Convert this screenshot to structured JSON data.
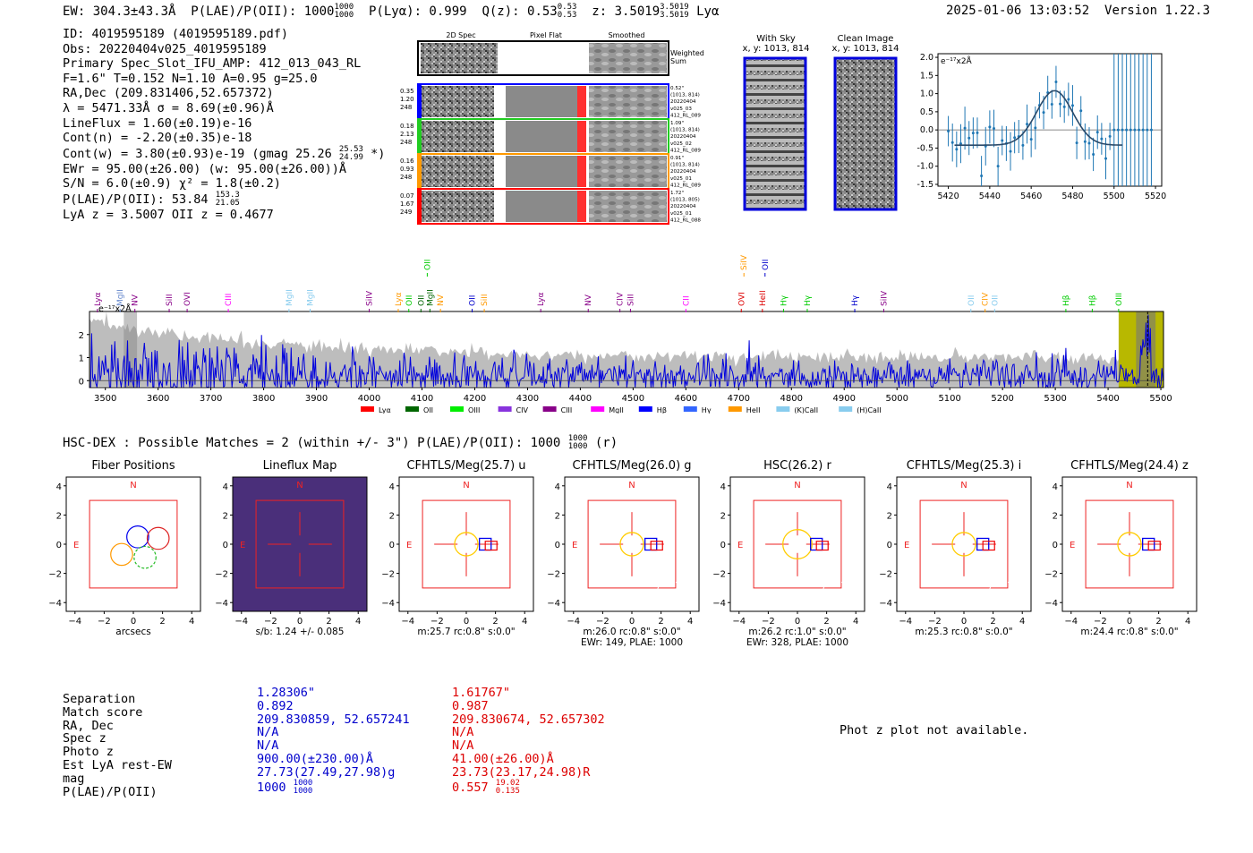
{
  "header": {
    "ew": "EW: 304.3±43.3Å",
    "plae": "P(LAE)/P(OII): 1000",
    "plae_hi": "1000",
    "plae_lo": "1000",
    "plya": "P(Lyα): 0.999",
    "qz": "Q(z): 0.53",
    "qz_hi": "0.53",
    "qz_lo": "0.53",
    "z": "z: 3.5019",
    "z_hi": "3.5019",
    "z_lo": "3.5019",
    "z_line": "Lyα",
    "timestamp": "2025-01-06 13:03:52",
    "version": "Version 1.22.3"
  },
  "info": {
    "id": "ID: 4019595189 (4019595189.pdf)",
    "obs": "Obs: 20220404v025_4019595189",
    "primary": "Primary Spec_Slot_IFU_AMP: 412_013_043_RL",
    "params": "F=1.6\"  T=0.152  N=1.10  A=0.95  g=25.0",
    "radec": "RA,Dec (209.831406,52.657372)",
    "lambda": "λ = 5471.33Å   σ = 8.69(±0.96)Å",
    "lineflux": "LineFlux = 1.60(±0.19)e-16",
    "contn": "Cont(n) = -2.20(±0.35)e-18",
    "contw": "Cont(w) = 3.80(±0.93)e-19 (gmag 25.26",
    "contw_hi": "25.53",
    "contw_lo": "24.99",
    "contw_end": "*)",
    "ewr": "EWr = 95.00(±26.00) (w: 95.00(±26.00))Å",
    "sn": "S/N = 6.0(±0.9)  χ² = 1.8(±0.2)",
    "plae": "P(LAE)/P(OII): 53.84",
    "plae_hi": "153.3",
    "plae_lo": "21.05",
    "zline": "LyA z = 3.5007   OII z = 0.4677"
  },
  "spec2d": {
    "col_titles": [
      "2D Spec",
      "Pixel Flat",
      "Smoothed"
    ],
    "weighted": "Weighted Sum",
    "rows": [
      {
        "left": [
          "0.35",
          "1.20",
          "248"
        ],
        "right": [
          "0.52\"",
          "(1013, 814)",
          "20220404",
          "v025_03",
          "412_RL_089"
        ],
        "color": "#0000ff"
      },
      {
        "left": [
          "0.18",
          "2.13",
          "248"
        ],
        "right": [
          "1.09\"",
          "(1013, 814)",
          "20220404",
          "v025_02",
          "412_RL_089"
        ],
        "color": "#22cc22"
      },
      {
        "left": [
          "0.16",
          "0.93",
          "248"
        ],
        "right": [
          "0.91\"",
          "(1013, 814)",
          "20220404",
          "v025_01",
          "412_RL_089"
        ],
        "color": "#ff9900"
      },
      {
        "left": [
          "0.07",
          "1.67",
          "249"
        ],
        "right": [
          "1.72\"",
          "(1013, 805)",
          "20220404",
          "v025_01",
          "412_RL_088"
        ],
        "color": "#ff0000"
      }
    ]
  },
  "sky": {
    "with_sky_title": "With Sky",
    "with_sky_xy": "x, y: 1013, 814",
    "clean_title": "Clean Image",
    "clean_xy": "x, y: 1013, 814"
  },
  "line_fit_chart": {
    "type": "line",
    "unit_label": "e⁻¹⁷x2Å",
    "xlim": [
      5415,
      5523
    ],
    "ylim": [
      -1.55,
      2.1
    ],
    "xticks": [
      5420,
      5440,
      5460,
      5480,
      5500,
      5520
    ],
    "yticks": [
      -1.5,
      -1.0,
      -0.5,
      0.0,
      0.5,
      1.0,
      1.5,
      2.0
    ],
    "gauss": {
      "mu": 5471.3,
      "sigma": 8.69,
      "amp": 1.5,
      "base": -0.42,
      "x0": 5423,
      "x1": 5504
    }
  },
  "chart_data": {
    "type": "line",
    "title": "",
    "unit_label": "e⁻¹⁷x2Å",
    "xlim": [
      3470,
      5505
    ],
    "ylim": [
      -0.3,
      3.0
    ],
    "xticks": [
      3500,
      3600,
      3700,
      3800,
      3900,
      4000,
      4100,
      4200,
      4300,
      4400,
      4500,
      4600,
      4700,
      4800,
      4900,
      5000,
      5100,
      5200,
      5300,
      5400,
      5500
    ],
    "yticks": [
      0,
      1,
      2
    ],
    "legend": [
      {
        "name": "Lyα",
        "color": "#ff0000"
      },
      {
        "name": "OII",
        "color": "#006600"
      },
      {
        "name": "OIII",
        "color": "#00ee00"
      },
      {
        "name": "CIV",
        "color": "#8833dd"
      },
      {
        "name": "CIII",
        "color": "#880088"
      },
      {
        "name": "MgII",
        "color": "#ff00ff"
      },
      {
        "name": "Hβ",
        "color": "#0000ff"
      },
      {
        "name": "Hγ",
        "color": "#3366ff"
      },
      {
        "name": "HeII",
        "color": "#ff9900"
      },
      {
        "name": "(K)CaII",
        "color": "#88ccee"
      },
      {
        "name": "(H)CaII",
        "color": "#88ccee"
      }
    ],
    "line_labels": [
      {
        "name": "Lyα",
        "x": 3485,
        "color": "#880088",
        "row": 0
      },
      {
        "name": "MgII",
        "x": 3528,
        "color": "#6688cc",
        "row": 0
      },
      {
        "name": "NV",
        "x": 3556,
        "color": "#880088",
        "row": 0
      },
      {
        "name": "SiII",
        "x": 3621,
        "color": "#880088",
        "row": 0
      },
      {
        "name": "OVI",
        "x": 3655,
        "color": "#880088",
        "row": 0
      },
      {
        "name": "CIII",
        "x": 3733,
        "color": "#ff00ff",
        "row": 0
      },
      {
        "name": "MgII",
        "x": 3848,
        "color": "#88ccee",
        "row": 0
      },
      {
        "name": "MgII",
        "x": 3888,
        "color": "#88ccee",
        "row": 0
      },
      {
        "name": "SiIV",
        "x": 4000,
        "color": "#880088",
        "row": 0
      },
      {
        "name": "Lyα",
        "x": 4055,
        "color": "#ff9900",
        "row": 0
      },
      {
        "name": "OII",
        "x": 4075,
        "color": "#00cc00",
        "row": 0
      },
      {
        "name": "OII",
        "x": 4098,
        "color": "#006600",
        "row": 0
      },
      {
        "name": "MgII",
        "x": 4115,
        "color": "#006600",
        "row": 0
      },
      {
        "name": "NV",
        "x": 4135,
        "color": "#ff9900",
        "row": 0
      },
      {
        "name": "OII",
        "x": 4195,
        "color": "#0000cc",
        "row": 0
      },
      {
        "name": "SiII",
        "x": 4218,
        "color": "#ff9900",
        "row": 0
      },
      {
        "name": "Lyα",
        "x": 4325,
        "color": "#880088",
        "row": 0
      },
      {
        "name": "NV",
        "x": 4415,
        "color": "#880088",
        "row": 0
      },
      {
        "name": "CIV",
        "x": 4475,
        "color": "#880088",
        "row": 0
      },
      {
        "name": "SiII",
        "x": 4495,
        "color": "#880088",
        "row": 0
      },
      {
        "name": "CII",
        "x": 4600,
        "color": "#ff00ff",
        "row": 0
      },
      {
        "name": "OVI",
        "x": 4705,
        "color": "#dd0000",
        "row": 0
      },
      {
        "name": "HeII",
        "x": 4745,
        "color": "#dd0000",
        "row": 0
      },
      {
        "name": "Hγ",
        "x": 4785,
        "color": "#00cc00",
        "row": 0
      },
      {
        "name": "Hγ",
        "x": 4830,
        "color": "#00cc00",
        "row": 0
      },
      {
        "name": "Hγ",
        "x": 4920,
        "color": "#0000cc",
        "row": 0
      },
      {
        "name": "SiIV",
        "x": 4975,
        "color": "#880088",
        "row": 0
      },
      {
        "name": "OII",
        "x": 5140,
        "color": "#88ccee",
        "row": 0
      },
      {
        "name": "CIV",
        "x": 5167,
        "color": "#ff9900",
        "row": 0
      },
      {
        "name": "OII",
        "x": 5185,
        "color": "#88ccee",
        "row": 0
      },
      {
        "name": "Hβ",
        "x": 5320,
        "color": "#00cc00",
        "row": 0
      },
      {
        "name": "Hβ",
        "x": 5370,
        "color": "#00cc00",
        "row": 0
      },
      {
        "name": "OIII",
        "x": 5420,
        "color": "#00cc00",
        "row": 0
      },
      {
        "name": "OII",
        "x": 4110,
        "color": "#00cc00",
        "row": 1
      },
      {
        "name": "SiIV",
        "x": 4710,
        "color": "#ff9900",
        "row": 1
      },
      {
        "name": "OII",
        "x": 4750,
        "color": "#0000cc",
        "row": 1
      }
    ],
    "highlight_range": [
      5420,
      5505
    ]
  },
  "hsc": {
    "title": "HSC-DEX : Possible Matches = 2 (within +/- 3\")  P(LAE)/P(OII): 1000",
    "title_hi": "1000",
    "title_lo": "1000",
    "title_end": "(r)",
    "panels": [
      {
        "title": "Fiber Positions",
        "sub1": "arcsecs",
        "sub2": ""
      },
      {
        "title": "Lineflux Map",
        "sub1": "s/b: 1.24 +/- 0.085",
        "sub2": ""
      },
      {
        "title": "CFHTLS/Meg(25.7) u",
        "sub1": "m:25.7 rc:0.8\"  s:0.0\"",
        "sub2": ""
      },
      {
        "title": "CFHTLS/Meg(26.0) g",
        "sub1": "m:26.0 rc:0.8\"  s:0.0\"",
        "sub2": "EWr: 149, PLAE: 1000"
      },
      {
        "title": "HSC(26.2) r",
        "sub1": "m:26.2 rc:1.0\"  s:0.0\"",
        "sub2": "EWr: 328, PLAE: 1000"
      },
      {
        "title": "CFHTLS/Meg(25.3) i",
        "sub1": "m:25.3 rc:0.8\"  s:0.0\"",
        "sub2": ""
      },
      {
        "title": "CFHTLS/Meg(24.4) z",
        "sub1": "m:24.4 rc:0.8\"  s:0.0\"",
        "sub2": ""
      }
    ],
    "ticks": [
      "−4",
      "−2",
      "0",
      "2",
      "4"
    ],
    "yticks": [
      "4",
      "2",
      "0",
      "−2",
      "−4"
    ],
    "north": "N",
    "east": "E"
  },
  "table": {
    "labels": [
      "Separation",
      "Match score",
      "RA, Dec",
      "Spec z",
      "Photo z",
      "Est LyA rest-EW",
      "mag",
      "P(LAE)/P(OII)"
    ],
    "c1": [
      "1.28306\"",
      "0.892",
      "209.830859, 52.657241",
      "N/A",
      "N/A",
      "900.00(±230.00)Å",
      "27.73(27.49,27.98)g",
      "1000"
    ],
    "c1_plae_hi": "1000",
    "c1_plae_lo": "1000",
    "c2": [
      "1.61767\"",
      "0.987",
      "209.830674, 52.657302",
      "N/A",
      "N/A",
      "41.00(±26.00)Å",
      "23.73(23.17,24.98)R",
      "0.557"
    ],
    "c2_plae_hi": "19.02",
    "c2_plae_lo": "0.135",
    "photz_msg": "Phot z plot not available."
  }
}
